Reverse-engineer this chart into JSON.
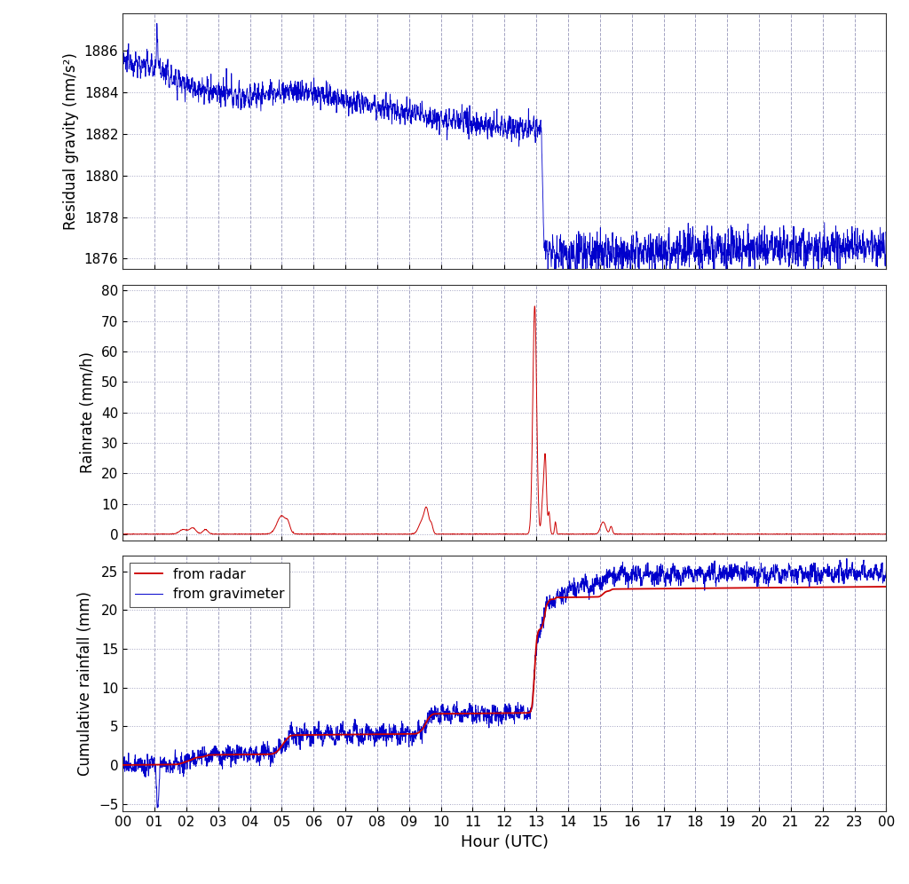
{
  "xlabel": "Hour (UTC)",
  "gravity_ylabel": "Residual gravity (nm/s²)",
  "rainrate_ylabel": "Rainrate (mm/h)",
  "cumrain_ylabel": "Cumulative rainfall (mm)",
  "gravity_ylim": [
    1875.5,
    1887.8
  ],
  "gravity_yticks": [
    1876,
    1878,
    1880,
    1882,
    1884,
    1886
  ],
  "rainrate_ylim": [
    -2,
    82
  ],
  "rainrate_yticks": [
    0,
    10,
    20,
    30,
    40,
    50,
    60,
    70,
    80
  ],
  "cumrain_ylim": [
    -6,
    27
  ],
  "cumrain_yticks": [
    -5,
    0,
    5,
    10,
    15,
    20,
    25
  ],
  "xlim": [
    0,
    24
  ],
  "xticks": [
    0,
    1,
    2,
    3,
    4,
    5,
    6,
    7,
    8,
    9,
    10,
    11,
    12,
    13,
    14,
    15,
    16,
    17,
    18,
    19,
    20,
    21,
    22,
    23,
    24
  ],
  "xticklabels": [
    "00",
    "01",
    "02",
    "03",
    "04",
    "05",
    "06",
    "07",
    "08",
    "09",
    "10",
    "11",
    "12",
    "13",
    "14",
    "15",
    "16",
    "17",
    "18",
    "19",
    "20",
    "21",
    "22",
    "23",
    "00"
  ],
  "gravity_color": "#0000cc",
  "radar_color": "#cc0000",
  "gravimeter_color": "#0000cc",
  "legend_radar": "from radar",
  "legend_gravimeter": "from gravimeter",
  "background_color": "#ffffff",
  "grid_color": "#9999bb",
  "n_points": 2880
}
